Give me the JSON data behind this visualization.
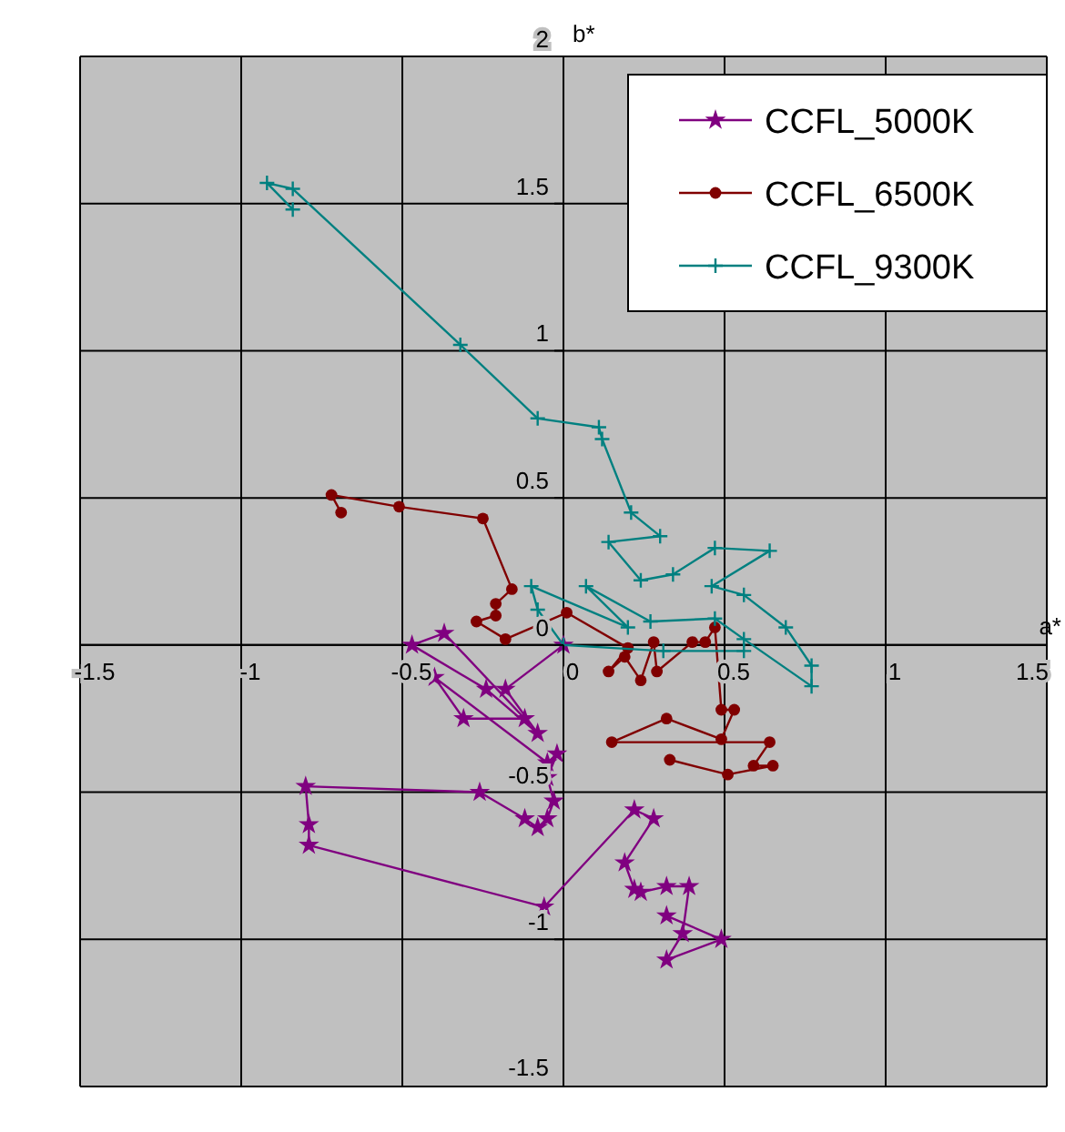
{
  "chart_data": {
    "type": "line",
    "xlabel": "a*",
    "ylabel": "b*",
    "xlim": [
      -1.5,
      1.5
    ],
    "ylim": [
      -1.5,
      2
    ],
    "xticks": [
      -1.5,
      -1,
      -0.5,
      0,
      0.5,
      1,
      1.5
    ],
    "yticks": [
      -1.5,
      -1,
      -0.5,
      0,
      0.5,
      1,
      1.5,
      2
    ],
    "grid": true,
    "legend": "top right",
    "line_style": "solid",
    "series": [
      {
        "name": "CCFL_5000K",
        "color": "#800080",
        "marker": "star",
        "x": [
          0,
          -0.18,
          -0.08,
          -0.24,
          -0.47,
          -0.37,
          -0.12,
          -0.31,
          -0.4,
          -0.05,
          -0.02,
          -0.05,
          -0.03,
          -0.05,
          -0.08,
          -0.12,
          -0.26,
          -0.8,
          -0.79,
          -0.79,
          -0.06,
          0.22,
          0.28,
          0.19,
          0.22,
          0.24,
          0.32,
          0.39,
          0.37,
          0.32,
          0.49,
          0.32
        ],
        "values": [
          0,
          -0.15,
          -0.3,
          -0.15,
          0,
          0.04,
          -0.25,
          -0.25,
          -0.11,
          -0.4,
          -0.37,
          -0.45,
          -0.53,
          -0.59,
          -0.62,
          -0.59,
          -0.5,
          -0.48,
          -0.61,
          -0.68,
          -0.89,
          -0.56,
          -0.59,
          -0.74,
          -0.83,
          -0.84,
          -0.82,
          -0.82,
          -0.98,
          -1.07,
          -1,
          -0.92
        ]
      },
      {
        "name": "CCFL_6500K",
        "color": "#800000",
        "marker": "circle",
        "x": [
          -0.69,
          -0.72,
          -0.51,
          -0.25,
          -0.16,
          -0.21,
          -0.21,
          -0.27,
          -0.18,
          0.01,
          0.2,
          0.14,
          0.19,
          0.24,
          0.28,
          0.29,
          0.4,
          0.44,
          0.47,
          0.49,
          0.53,
          0.49,
          0.32,
          0.15,
          0.64,
          0.59,
          0.65,
          0.51,
          0.33
        ],
        "values": [
          0.45,
          0.51,
          0.47,
          0.43,
          0.19,
          0.14,
          0.1,
          0.08,
          0.02,
          0.11,
          -0.01,
          -0.09,
          -0.04,
          -0.12,
          0.01,
          -0.09,
          0.01,
          0.01,
          0.06,
          -0.22,
          -0.22,
          -0.32,
          -0.25,
          -0.33,
          -0.33,
          -0.41,
          -0.41,
          -0.44,
          -0.39
        ]
      },
      {
        "name": "CCFL_9300K",
        "color": "#008080",
        "marker": "cross",
        "x": [
          -0.84,
          -0.92,
          -0.84,
          -0.32,
          -0.08,
          0.11,
          0.12,
          0.21,
          0.3,
          0.14,
          0.24,
          0.34,
          0.47,
          0.64,
          0.46,
          0.56,
          0.69,
          0.77,
          0.77,
          0.56,
          0.47,
          0.27,
          0.07,
          0.2,
          -0.1,
          -0.08,
          0,
          0.31,
          0.56
        ],
        "values": [
          1.48,
          1.57,
          1.55,
          1.02,
          0.77,
          0.74,
          0.7,
          0.45,
          0.37,
          0.35,
          0.22,
          0.24,
          0.33,
          0.32,
          0.2,
          0.17,
          0.06,
          -0.07,
          -0.14,
          0.02,
          0.09,
          0.08,
          0.2,
          0.06,
          0.2,
          0.12,
          0,
          -0.02,
          -0.02
        ]
      }
    ]
  }
}
